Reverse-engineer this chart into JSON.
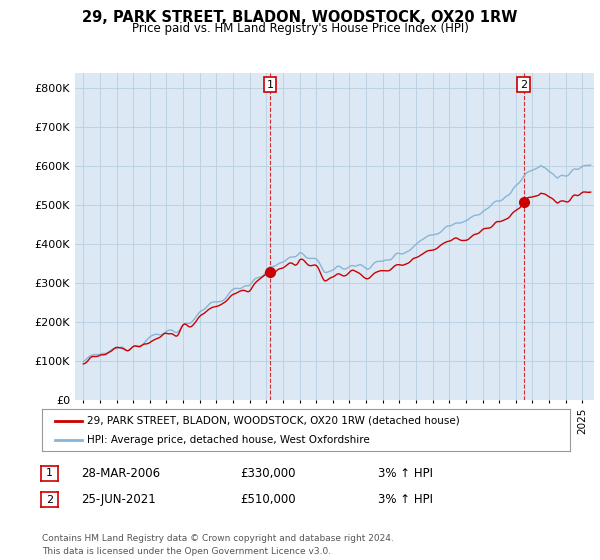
{
  "title": "29, PARK STREET, BLADON, WOODSTOCK, OX20 1RW",
  "subtitle": "Price paid vs. HM Land Registry's House Price Index (HPI)",
  "ytick_values": [
    0,
    100000,
    200000,
    300000,
    400000,
    500000,
    600000,
    700000,
    800000
  ],
  "ylim": [
    0,
    840000
  ],
  "xlim_start": 1994.5,
  "xlim_end": 2025.7,
  "hpi_color": "#8ab4d4",
  "price_color": "#cc0000",
  "plot_bg_color": "#dce9f5",
  "marker1_x": 2006.23,
  "marker1_y": 330000,
  "marker2_x": 2021.48,
  "marker2_y": 510000,
  "legend_label1": "29, PARK STREET, BLADON, WOODSTOCK, OX20 1RW (detached house)",
  "legend_label2": "HPI: Average price, detached house, West Oxfordshire",
  "table_row1": [
    "1",
    "28-MAR-2006",
    "£330,000",
    "3% ↑ HPI"
  ],
  "table_row2": [
    "2",
    "25-JUN-2021",
    "£510,000",
    "3% ↑ HPI"
  ],
  "footer": "Contains HM Land Registry data © Crown copyright and database right 2024.\nThis data is licensed under the Open Government Licence v3.0.",
  "bg_color": "#ffffff",
  "grid_color": "#b8cfe0"
}
